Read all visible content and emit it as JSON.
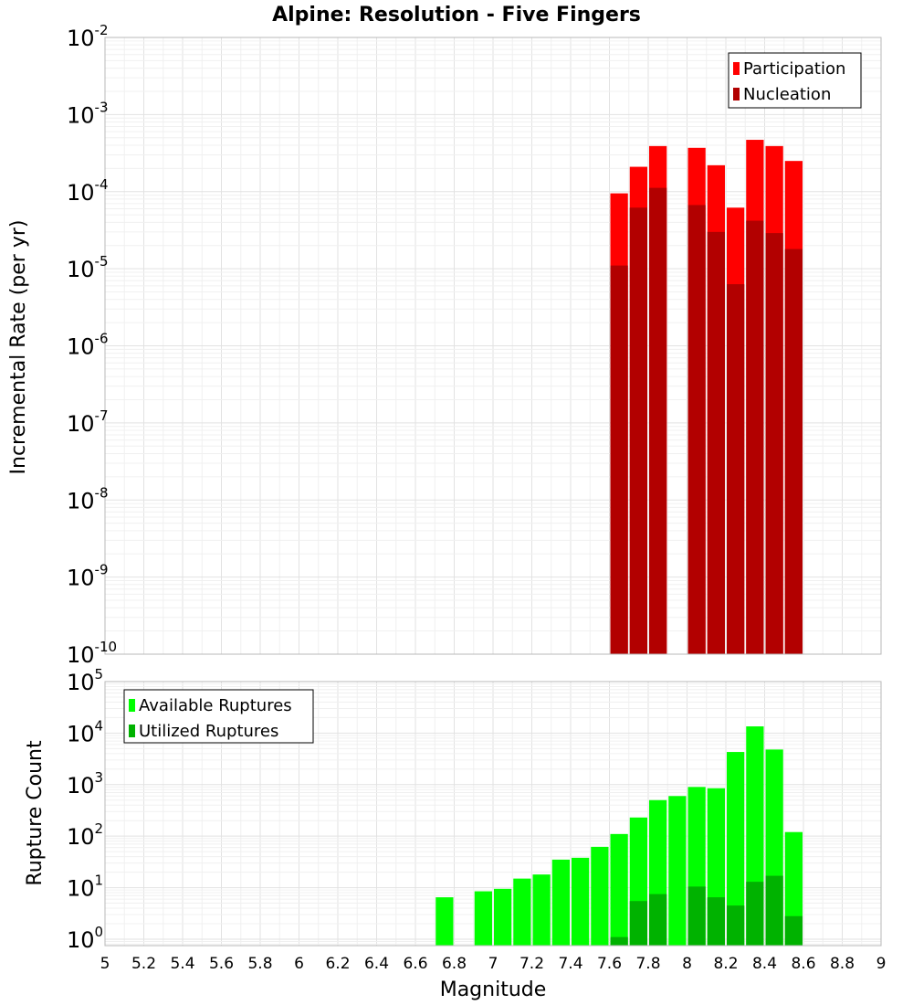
{
  "chart_data": [
    {
      "type": "bar",
      "title": "Alpine: Resolution - Five Fingers",
      "xlabel": "",
      "ylabel": "Incremental Rate (per yr)",
      "yscale": "log",
      "ylim": [
        1e-10,
        0.01
      ],
      "xlim": [
        5,
        9
      ],
      "grid": true,
      "legend": "top-right",
      "yticks": [
        {
          "base": "10",
          "exp": "-10",
          "value": 1e-10
        },
        {
          "base": "10",
          "exp": "-9",
          "value": 1e-09
        },
        {
          "base": "10",
          "exp": "-8",
          "value": 1e-08
        },
        {
          "base": "10",
          "exp": "-7",
          "value": 1e-07
        },
        {
          "base": "10",
          "exp": "-6",
          "value": 1e-06
        },
        {
          "base": "10",
          "exp": "-5",
          "value": 1e-05
        },
        {
          "base": "10",
          "exp": "-4",
          "value": 0.0001
        },
        {
          "base": "10",
          "exp": "-3",
          "value": 0.001
        },
        {
          "base": "10",
          "exp": "-2",
          "value": 0.01
        }
      ],
      "x": [
        7.65,
        7.75,
        7.85,
        7.95,
        8.05,
        8.15,
        8.25,
        8.35,
        8.45,
        8.55
      ],
      "series": [
        {
          "name": "Participation",
          "color": "#ff0000",
          "values": [
            9.5e-05,
            0.00021,
            0.00039,
            0,
            0.00037,
            0.00022,
            6.2e-05,
            0.00047,
            0.00039,
            0.00025
          ]
        },
        {
          "name": "Nucleation",
          "color": "#b20000",
          "values": [
            1.1e-05,
            6.2e-05,
            0.000112,
            0,
            6.7e-05,
            3e-05,
            6.3e-06,
            4.2e-05,
            2.9e-05,
            1.8e-05
          ]
        }
      ]
    },
    {
      "type": "bar",
      "title": "",
      "xlabel": "Magnitude",
      "ylabel": "Rupture Count",
      "yscale": "log",
      "ylim": [
        0.75,
        100000.0
      ],
      "xlim": [
        5,
        9
      ],
      "grid": true,
      "legend": "top-left",
      "yticks": [
        {
          "base": "10",
          "exp": "0",
          "value": 1
        },
        {
          "base": "10",
          "exp": "1",
          "value": 10
        },
        {
          "base": "10",
          "exp": "2",
          "value": 100
        },
        {
          "base": "10",
          "exp": "3",
          "value": 1000
        },
        {
          "base": "10",
          "exp": "4",
          "value": 10000
        },
        {
          "base": "10",
          "exp": "5",
          "value": 100000
        }
      ],
      "xticks": [
        "5",
        "5.2",
        "5.4",
        "5.6",
        "5.8",
        "6",
        "6.2",
        "6.4",
        "6.6",
        "6.8",
        "7",
        "7.2",
        "7.4",
        "7.6",
        "7.8",
        "8",
        "8.2",
        "8.4",
        "8.6",
        "8.8",
        "9"
      ],
      "x": [
        6.75,
        6.85,
        6.95,
        7.05,
        7.15,
        7.25,
        7.35,
        7.45,
        7.55,
        7.65,
        7.75,
        7.85,
        7.95,
        8.05,
        8.15,
        8.25,
        8.35,
        8.45,
        8.55
      ],
      "series": [
        {
          "name": "Available Ruptures",
          "color": "#00ff00",
          "values": [
            6.5,
            0,
            8.5,
            9.5,
            15,
            18,
            35,
            38,
            62,
            110,
            230,
            500,
            600,
            900,
            850,
            4300,
            13500,
            4800,
            120
          ]
        },
        {
          "name": "Utilized Ruptures",
          "color": "#00b200",
          "values": [
            0,
            0,
            0,
            0,
            0,
            0,
            0,
            0,
            0,
            1.1,
            5.5,
            7.5,
            0,
            10.5,
            6.5,
            4.5,
            13,
            17,
            2.8
          ]
        }
      ]
    }
  ]
}
